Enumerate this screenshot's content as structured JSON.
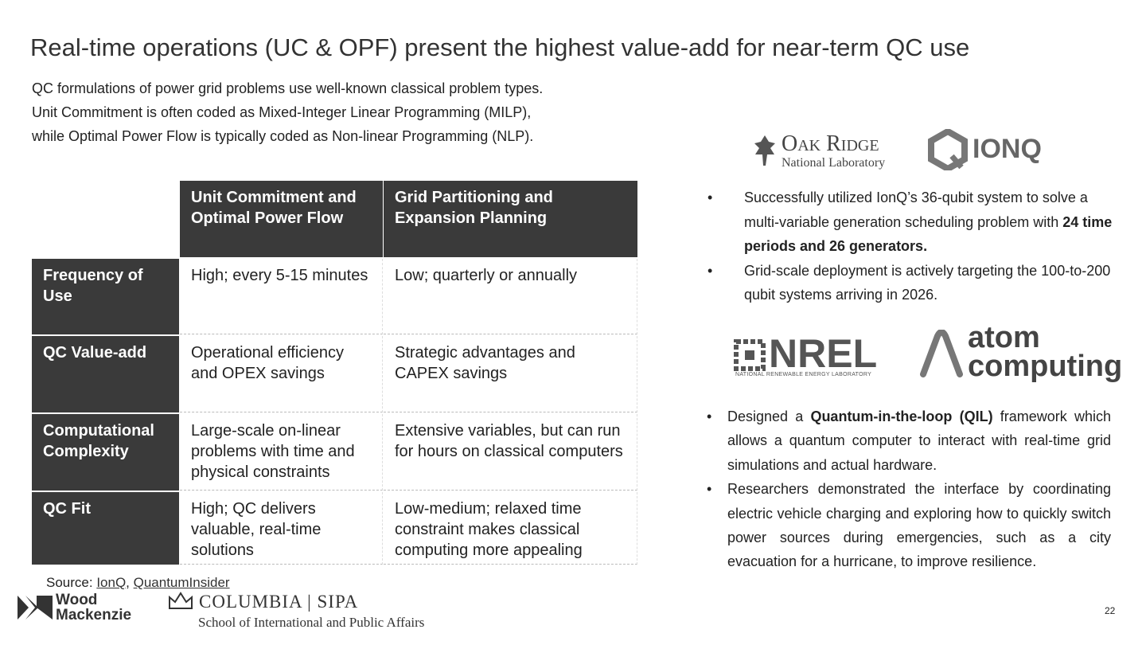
{
  "title": "Real-time operations (UC & OPF) present the highest value-add for near-term QC use",
  "intro": [
    "QC formulations of power grid problems use well-known classical problem types.",
    "Unit Commitment is often coded as Mixed-Integer Linear Programming (MILP),",
    "while Optimal Power Flow is typically coded as Non-linear Programming (NLP)."
  ],
  "table": {
    "header": [
      "Unit Commitment and Optimal Power Flow",
      "Grid Partitioning and Expansion Planning"
    ],
    "rows": [
      [
        "Frequency of Use",
        "High; every 5-15 minutes",
        "Low; quarterly or annually"
      ],
      [
        "QC Value-add",
        "Operational efficiency and OPEX savings",
        "Strategic advantages and CAPEX savings"
      ],
      [
        "Computational Complexity",
        "Large-scale on-linear problems with time and physical constraints",
        "Extensive variables, but can run for hours on classical computers"
      ],
      [
        "QC Fit",
        "High; QC delivers valuable, real-time solutions",
        "Low-medium; relaxed time constraint makes classical computing more appealing"
      ]
    ]
  },
  "source": [
    {
      "text": "Source: "
    },
    {
      "text": "IonQ",
      "link": true
    },
    {
      "text": ", "
    },
    {
      "text": "QuantumInsider",
      "link": true
    }
  ],
  "logos": {
    "oak_ridge": [
      "Oak Ridge",
      "National Laboratory"
    ],
    "ionq": "IONQ",
    "nrel": "NREL",
    "nrel_sub": "NATIONAL RENEWABLE ENERGY LABORATORY",
    "atom_computing": [
      "atom",
      "computing"
    ],
    "wood_mackenzie": [
      "Wood",
      "Mackenzie"
    ],
    "columbia": "COLUMBIA | SIPA",
    "columbia_sub": "School of International and Public Affairs"
  },
  "bullets_top": [
    [
      {
        "text": "Successfully utilized IonQ’s 36-qubit system to solve a multi-variable generation scheduling problem with "
      },
      {
        "text": "24 time periods and 26 generators.",
        "bold": true
      }
    ],
    [
      {
        "text": "Grid-scale deployment is actively targeting the 100-to-200 qubit systems arriving in 2026."
      }
    ]
  ],
  "bullets_bottom": [
    [
      {
        "text": "Designed a "
      },
      {
        "text": "Quantum-in-the-loop (QIL)",
        "bold": true
      },
      {
        "text": " framework which allows a quantum computer to interact with real-time grid simulations and actual hardware."
      }
    ],
    [
      {
        "text": "Researchers demonstrated the interface by coordinating electric vehicle charging and exploring how to quickly switch power sources during emergencies, such as a city evacuation for a hurricane, to improve resilience."
      }
    ]
  ],
  "page_number": "22"
}
